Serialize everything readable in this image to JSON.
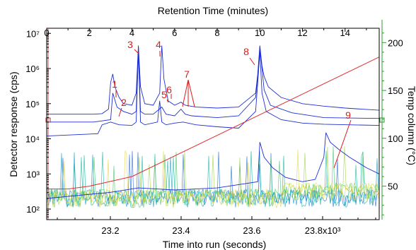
{
  "chart_data": {
    "type": "line",
    "xlabel_bottom": "Time into run (seconds)",
    "xlabel_top": "Retention Time (minutes)",
    "ylabel_left": "Detector response (cps)",
    "ylabel_right": "Temp column (°C)",
    "x_bottom": {
      "scale": "linear",
      "range": [
        23.02,
        23.96
      ],
      "ticks": [
        23.2,
        23.4,
        23.6,
        23.8
      ],
      "tick_labels": [
        "23.2",
        "23.4",
        "23.6",
        "23.8x10³"
      ]
    },
    "x_top": {
      "scale": "linear",
      "range": [
        0,
        15.6
      ],
      "ticks": [
        0,
        2,
        4,
        6,
        8,
        10,
        12,
        14
      ],
      "tick_labels": [
        "0",
        "2",
        "4",
        "6",
        "8",
        "10",
        "12",
        "14"
      ]
    },
    "y_left": {
      "scale": "log",
      "range": [
        50,
        14000000
      ],
      "ticks": [
        100,
        1000,
        10000,
        100000,
        1000000,
        10000000
      ],
      "tick_labels": [
        "10²",
        "10³",
        "10⁴",
        "10⁵",
        "10⁶",
        "10⁷"
      ]
    },
    "y_right": {
      "scale": "linear",
      "range": [
        15,
        215
      ],
      "ticks": [
        50,
        100,
        150,
        200
      ],
      "tick_labels": [
        "50",
        "100",
        "150",
        "200"
      ]
    },
    "colors": {
      "main": "#1f2fd0",
      "temperature": "#e03030",
      "labels": "#e01818",
      "noise_palette": [
        "#2a6fd6",
        "#19a0c8",
        "#1fb8a8",
        "#4cc870",
        "#a6d84a",
        "#e8d848"
      ]
    },
    "series": [
      {
        "axis": "left",
        "x_minutes": [
          0,
          2.2,
          2.6,
          2.9,
          3.0,
          3.1,
          3.2,
          3.4,
          3.6,
          4.0,
          4.2,
          4.3,
          4.4,
          4.6,
          5.0,
          5.3,
          5.4,
          5.5,
          5.7,
          6.0,
          6.3,
          6.5,
          7.0,
          8.0,
          9.0,
          9.8,
          9.9,
          10.0,
          10.1,
          10.2,
          10.4,
          11.0,
          12.0,
          13.0,
          14.0,
          15.6
        ],
        "y": [
          50000,
          50000,
          52000,
          70000,
          400000,
          700000,
          300000,
          150000,
          100000,
          90000,
          200000,
          4500000,
          300000,
          100000,
          90000,
          200000,
          4500000,
          500000,
          120000,
          90000,
          110000,
          90000,
          80000,
          75000,
          80000,
          200000,
          700000,
          4500000,
          1200000,
          600000,
          300000,
          150000,
          100000,
          85000,
          75000,
          65000
        ]
      },
      {
        "axis": "left",
        "x_minutes": [
          0,
          2.2,
          3.0,
          3.1,
          3.3,
          3.6,
          4.0,
          4.2,
          4.3,
          4.4,
          4.6,
          5.0,
          5.4,
          5.6,
          6.0,
          6.3,
          6.5,
          6.8,
          8.0,
          9.0,
          9.8,
          9.9,
          10.0,
          10.2,
          10.5,
          11.5,
          13.0,
          15.6
        ],
        "y": [
          30000,
          30000,
          35000,
          200000,
          80000,
          60000,
          50000,
          60000,
          4000000,
          60000,
          50000,
          50000,
          80000,
          50000,
          45000,
          70000,
          50000,
          45000,
          40000,
          45000,
          150000,
          600000,
          4000000,
          250000,
          90000,
          55000,
          40000,
          38000
        ]
      },
      {
        "axis": "left",
        "x_minutes": [
          0,
          2.4,
          2.6,
          3.0,
          3.4,
          4.0,
          4.2,
          4.3,
          4.4,
          4.6,
          5.2,
          5.3,
          5.4,
          5.6,
          6.0,
          6.4,
          7.0,
          8.0,
          9.0,
          9.8,
          9.9,
          10.0,
          10.1,
          10.3,
          11.0,
          12.0,
          13.0,
          15.6
        ],
        "y": [
          12000,
          14000,
          25000,
          30000,
          25000,
          24000,
          30000,
          3000000,
          30000,
          25000,
          30000,
          120000,
          30000,
          25000,
          28000,
          30000,
          25000,
          22000,
          20000,
          60000,
          400000,
          3000000,
          200000,
          60000,
          35000,
          28000,
          26000,
          24000
        ]
      },
      {
        "axis": "left",
        "x_minutes": [
          0,
          3.0,
          4.3,
          6.0,
          8.0,
          9.9,
          10.0,
          10.2,
          10.6,
          11.2,
          12.0,
          12.6,
          13.0,
          13.1,
          13.3,
          13.7,
          14.2,
          15.0,
          15.6
        ],
        "y": [
          200,
          300,
          400,
          350,
          400,
          600,
          8000,
          3000,
          1500,
          800,
          600,
          700,
          3000,
          15000,
          8000,
          5000,
          3000,
          1500,
          1000
        ]
      },
      {
        "axis": "right",
        "name": "Temp column (°C)",
        "x_minutes": [
          0,
          1.0,
          2.0,
          4.0,
          15.6
        ],
        "y": [
          47,
          47,
          50,
          60,
          185
        ]
      }
    ],
    "peak_labels": [
      "1",
      "2",
      "3",
      "4",
      "5",
      "6",
      "7",
      "8",
      "9"
    ],
    "grid": false,
    "legend": "none"
  }
}
